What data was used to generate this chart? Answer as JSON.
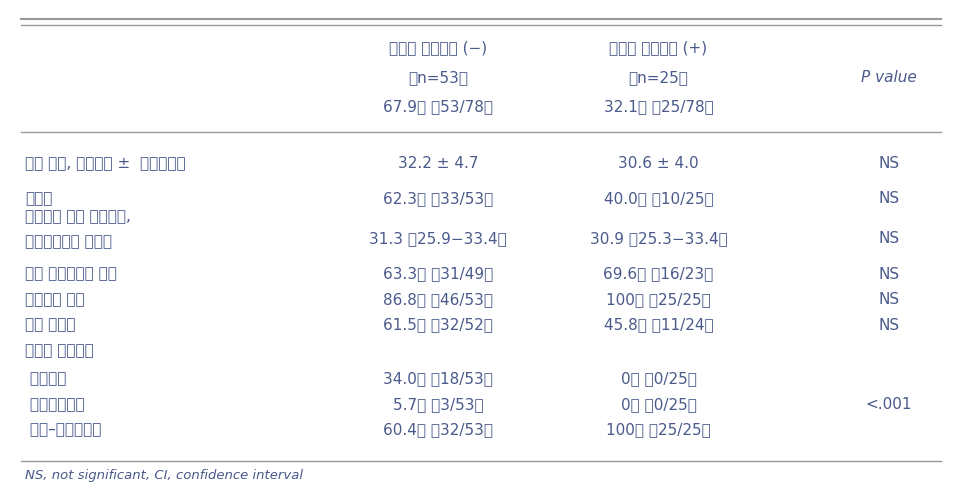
{
  "header_line1_col1": "자궁내 성장제한 (−)",
  "header_line1_col2": "자궁내 성장제한 (+)",
  "header_line2_col1": "（n=53）",
  "header_line2_col2": "（n=25）",
  "header_line2_col3": "P value",
  "header_line3_col1": "67.9％ （53/78）",
  "header_line3_col2": "32.1％ （25/78）",
  "rows": [
    {
      "label": "산모 나이, 세（평균 ±  표준편차）",
      "col1": "32.2 ± 4.7",
      "col2": "30.6 ± 4.0",
      "col3": "NS",
      "two_line": false
    },
    {
      "label": "경산부",
      "col1": "62.3％ （33/53）",
      "col2": "40.0％ （10/25）",
      "col3": "NS",
      "two_line": false
    },
    {
      "label": "양수쳸자 당시 임신주수,",
      "label2": "주（중앙값과 범위）",
      "col1": "31.3 （25.9−33.4）",
      "col2": "30.9 （25.3−33.4）",
      "col3": "NS",
      "two_line": true
    },
    {
      "label": "산전 스테로이드 투약",
      "col1": "63.3％ （31/49）",
      "col2": "69.6％ （16/23）",
      "col3": "NS",
      "two_line": false
    },
    {
      "label": "제왕절개 분만",
      "col1": "86.8％ （46/53）",
      "col2": "100％ （25/25）",
      "col3": "NS",
      "two_line": false
    },
    {
      "label": "남자 신생아",
      "col1": "61.5％ （32/52）",
      "col2": "45.8％ （11/24）",
      "col3": "NS",
      "two_line": false
    },
    {
      "label": "조산의 원인질환",
      "col1": "",
      "col2": "",
      "col3": "",
      "two_line": false
    },
    {
      "label": " 조기진통",
      "col1": "34.0％ （18/53）",
      "col2": "0％ ）0/25）",
      "col3": "",
      "two_line": false
    },
    {
      "label": " 조기양막파수",
      "col1": "5.7％ （3/53）",
      "col2": "0％ ）0/25）",
      "col3": "",
      "two_line": false
    },
    {
      "label": " 모체–태아적응증",
      "col1": "60.4％ （32/53）",
      "col2": "100％ （25/25）",
      "col3": "",
      "two_line": false
    }
  ],
  "p_combined": "<.001",
  "footnote": "NS, not significant, CI, confidence interval",
  "text_color": "#4a5a8a",
  "line_color": "#999999",
  "bg_color": "#ffffff",
  "font_size": 11,
  "header_font_size": 11,
  "footnote_font_size": 9.5
}
